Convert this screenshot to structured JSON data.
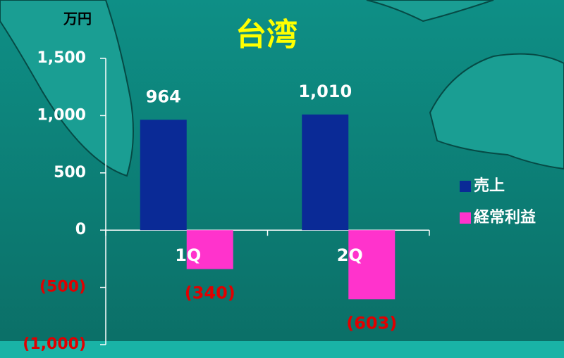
{
  "chart_data": {
    "type": "bar",
    "title": "台湾",
    "unit_label": "万円",
    "categories": [
      "1Q",
      "2Q"
    ],
    "series": [
      {
        "name": "売上",
        "color": "#0a2a96",
        "values": [
          964,
          1010
        ],
        "value_labels": [
          "964",
          "1,010"
        ]
      },
      {
        "name": "経常利益",
        "color": "#ff33cc",
        "values": [
          -340,
          -603
        ],
        "value_labels": [
          "(340)",
          "(603)"
        ]
      }
    ],
    "ylim": [
      -1000,
      1500
    ],
    "yticks": [
      {
        "value": 1500,
        "label": "1,500"
      },
      {
        "value": 1000,
        "label": "1,000"
      },
      500,
      0,
      {
        "value": -500,
        "label": "(500)"
      },
      {
        "value": -1000,
        "label": "(1,000)"
      }
    ],
    "negative_color": "#e00000",
    "legend": "right"
  }
}
